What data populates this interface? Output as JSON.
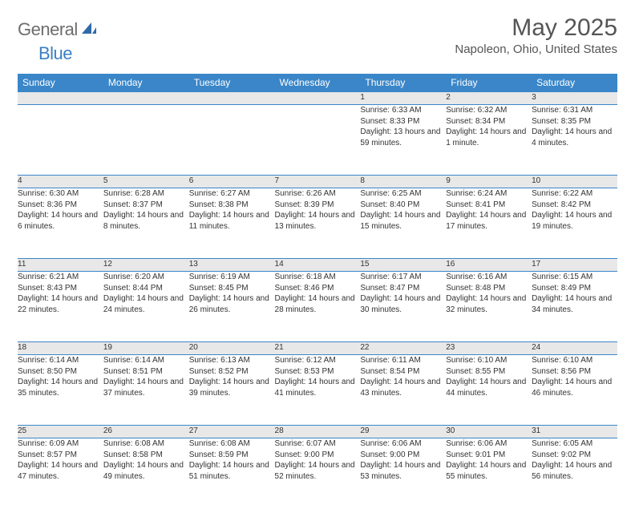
{
  "logo": {
    "text1": "General",
    "text2": "Blue"
  },
  "title": "May 2025",
  "location": "Napoleon, Ohio, United States",
  "colors": {
    "header_bg": "#3a86c8",
    "header_text": "#ffffff",
    "daynum_bg": "#e8e8e8",
    "border": "#3a86c8",
    "logo_gray": "#6d6d6d",
    "logo_blue": "#3a7fc2",
    "text": "#333333"
  },
  "day_headers": [
    "Sunday",
    "Monday",
    "Tuesday",
    "Wednesday",
    "Thursday",
    "Friday",
    "Saturday"
  ],
  "weeks": [
    {
      "nums": [
        "",
        "",
        "",
        "",
        "1",
        "2",
        "3"
      ],
      "cells": [
        "",
        "",
        "",
        "",
        "Sunrise: 6:33 AM\nSunset: 8:33 PM\nDaylight: 13 hours and 59 minutes.",
        "Sunrise: 6:32 AM\nSunset: 8:34 PM\nDaylight: 14 hours and 1 minute.",
        "Sunrise: 6:31 AM\nSunset: 8:35 PM\nDaylight: 14 hours and 4 minutes."
      ]
    },
    {
      "nums": [
        "4",
        "5",
        "6",
        "7",
        "8",
        "9",
        "10"
      ],
      "cells": [
        "Sunrise: 6:30 AM\nSunset: 8:36 PM\nDaylight: 14 hours and 6 minutes.",
        "Sunrise: 6:28 AM\nSunset: 8:37 PM\nDaylight: 14 hours and 8 minutes.",
        "Sunrise: 6:27 AM\nSunset: 8:38 PM\nDaylight: 14 hours and 11 minutes.",
        "Sunrise: 6:26 AM\nSunset: 8:39 PM\nDaylight: 14 hours and 13 minutes.",
        "Sunrise: 6:25 AM\nSunset: 8:40 PM\nDaylight: 14 hours and 15 minutes.",
        "Sunrise: 6:24 AM\nSunset: 8:41 PM\nDaylight: 14 hours and 17 minutes.",
        "Sunrise: 6:22 AM\nSunset: 8:42 PM\nDaylight: 14 hours and 19 minutes."
      ]
    },
    {
      "nums": [
        "11",
        "12",
        "13",
        "14",
        "15",
        "16",
        "17"
      ],
      "cells": [
        "Sunrise: 6:21 AM\nSunset: 8:43 PM\nDaylight: 14 hours and 22 minutes.",
        "Sunrise: 6:20 AM\nSunset: 8:44 PM\nDaylight: 14 hours and 24 minutes.",
        "Sunrise: 6:19 AM\nSunset: 8:45 PM\nDaylight: 14 hours and 26 minutes.",
        "Sunrise: 6:18 AM\nSunset: 8:46 PM\nDaylight: 14 hours and 28 minutes.",
        "Sunrise: 6:17 AM\nSunset: 8:47 PM\nDaylight: 14 hours and 30 minutes.",
        "Sunrise: 6:16 AM\nSunset: 8:48 PM\nDaylight: 14 hours and 32 minutes.",
        "Sunrise: 6:15 AM\nSunset: 8:49 PM\nDaylight: 14 hours and 34 minutes."
      ]
    },
    {
      "nums": [
        "18",
        "19",
        "20",
        "21",
        "22",
        "23",
        "24"
      ],
      "cells": [
        "Sunrise: 6:14 AM\nSunset: 8:50 PM\nDaylight: 14 hours and 35 minutes.",
        "Sunrise: 6:14 AM\nSunset: 8:51 PM\nDaylight: 14 hours and 37 minutes.",
        "Sunrise: 6:13 AM\nSunset: 8:52 PM\nDaylight: 14 hours and 39 minutes.",
        "Sunrise: 6:12 AM\nSunset: 8:53 PM\nDaylight: 14 hours and 41 minutes.",
        "Sunrise: 6:11 AM\nSunset: 8:54 PM\nDaylight: 14 hours and 43 minutes.",
        "Sunrise: 6:10 AM\nSunset: 8:55 PM\nDaylight: 14 hours and 44 minutes.",
        "Sunrise: 6:10 AM\nSunset: 8:56 PM\nDaylight: 14 hours and 46 minutes."
      ]
    },
    {
      "nums": [
        "25",
        "26",
        "27",
        "28",
        "29",
        "30",
        "31"
      ],
      "cells": [
        "Sunrise: 6:09 AM\nSunset: 8:57 PM\nDaylight: 14 hours and 47 minutes.",
        "Sunrise: 6:08 AM\nSunset: 8:58 PM\nDaylight: 14 hours and 49 minutes.",
        "Sunrise: 6:08 AM\nSunset: 8:59 PM\nDaylight: 14 hours and 51 minutes.",
        "Sunrise: 6:07 AM\nSunset: 9:00 PM\nDaylight: 14 hours and 52 minutes.",
        "Sunrise: 6:06 AM\nSunset: 9:00 PM\nDaylight: 14 hours and 53 minutes.",
        "Sunrise: 6:06 AM\nSunset: 9:01 PM\nDaylight: 14 hours and 55 minutes.",
        "Sunrise: 6:05 AM\nSunset: 9:02 PM\nDaylight: 14 hours and 56 minutes."
      ]
    }
  ]
}
